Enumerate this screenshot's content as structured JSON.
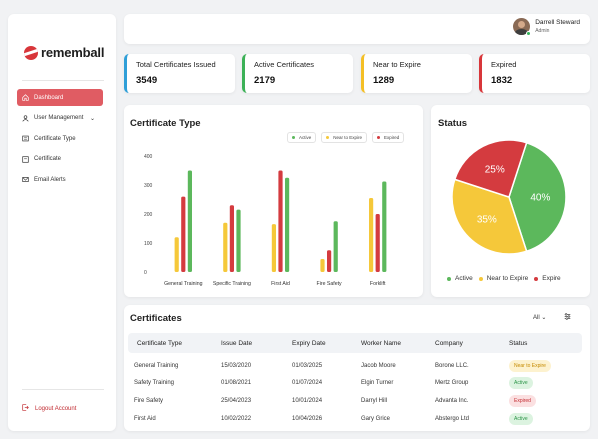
{
  "app": {
    "brand": "rememball"
  },
  "sidebar": {
    "items": [
      {
        "label": "Dashboard",
        "icon": "home-icon",
        "active": true
      },
      {
        "label": "User Management",
        "icon": "users-icon",
        "has_submenu": true
      },
      {
        "label": "Certificate Type",
        "icon": "list-icon"
      },
      {
        "label": "Certificate",
        "icon": "certificate-icon"
      },
      {
        "label": "Email Alerts",
        "icon": "mail-icon"
      }
    ],
    "logout_label": "Logout Account"
  },
  "user": {
    "name": "Darrell Steward",
    "role": "Admin"
  },
  "stats": [
    {
      "label": "Total Certificates Issued",
      "value": "3549",
      "color": "#2f9fd8"
    },
    {
      "label": "Active Certificates",
      "value": "2179",
      "color": "#3cb157"
    },
    {
      "label": "Near to Expire",
      "value": "1289",
      "color": "#f4bf26"
    },
    {
      "label": "Expired",
      "value": "1832",
      "color": "#d8363a"
    }
  ],
  "colors": {
    "active": "#5cb85c",
    "near": "#f5c83a",
    "expired": "#d43b3f",
    "accent": "#e05c63"
  },
  "chart_data": [
    {
      "type": "bar",
      "title": "Certificate Type",
      "categories": [
        "General Training",
        "Specific Training",
        "First Aid",
        "Fire Safety",
        "Forklift"
      ],
      "series": [
        {
          "name": "Near to Expire",
          "values": [
            120,
            170,
            165,
            45,
            255
          ]
        },
        {
          "name": "Expired",
          "values": [
            260,
            230,
            350,
            75,
            200
          ]
        },
        {
          "name": "Active",
          "values": [
            350,
            215,
            325,
            175,
            312
          ]
        }
      ],
      "ylim": [
        0,
        400
      ],
      "yticks": [
        "0",
        "100",
        "200",
        "300",
        "400"
      ],
      "legend_placement": "top-right",
      "legend": [
        "Active",
        "Near to Expire",
        "Expired"
      ],
      "grid": false
    },
    {
      "type": "pie",
      "title": "Status",
      "labels": [
        "Active",
        "Near to Expire",
        "Expire"
      ],
      "values": [
        40,
        35,
        25
      ],
      "value_labels": [
        "40%",
        "35%",
        "25%"
      ]
    }
  ],
  "certificates": {
    "title": "Certificates",
    "filter_label": "All",
    "headers": [
      "Certificate Type",
      "Issue Date",
      "Expiry Date",
      "Worker Name",
      "Company",
      "Status"
    ],
    "rows": [
      {
        "type": "General Training",
        "issue": "15/03/2020",
        "expiry": "01/03/2025",
        "worker": "Jacob Moore",
        "company": "Borone LLC.",
        "status": "Near to Expire",
        "status_kind": "near"
      },
      {
        "type": "Safety Training",
        "issue": "01/08/2021",
        "expiry": "01/07/2024",
        "worker": "Elgin Turner",
        "company": "Mertz Group",
        "status": "Active",
        "status_kind": "active"
      },
      {
        "type": "Fire Safety",
        "issue": "25/04/2023",
        "expiry": "10/01/2024",
        "worker": "Darryl Hill",
        "company": "Advanta Inc.",
        "status": "Expired",
        "status_kind": "expired"
      },
      {
        "type": "First Aid",
        "issue": "10/02/2022",
        "expiry": "10/04/2026",
        "worker": "Gary Grice",
        "company": "Abstergo Ltd",
        "status": "Active",
        "status_kind": "active"
      }
    ]
  }
}
